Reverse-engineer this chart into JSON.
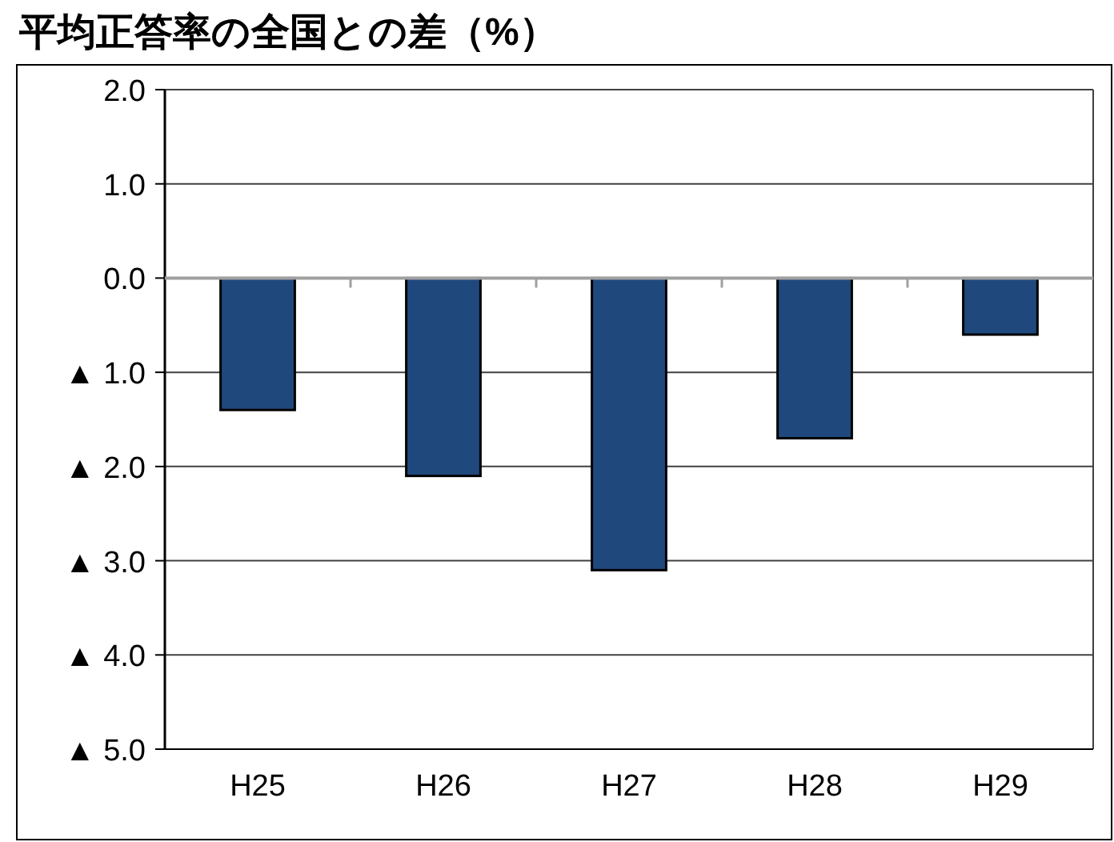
{
  "chart_data": {
    "type": "bar",
    "title": "平均正答率の全国との差（%）",
    "categories": [
      "H25",
      "H26",
      "H27",
      "H28",
      "H29"
    ],
    "values": [
      -1.4,
      -2.1,
      -3.1,
      -1.7,
      -0.6
    ],
    "color": "#1f497d",
    "ylim": [
      -5,
      2
    ],
    "yticks": [
      {
        "value": -5,
        "label": "▲ 5.0"
      },
      {
        "value": -4,
        "label": "▲ 4.0"
      },
      {
        "value": -3,
        "label": "▲ 3.0"
      },
      {
        "value": -2,
        "label": "▲ 2.0"
      },
      {
        "value": -1,
        "label": "▲ 1.0"
      },
      {
        "value": 0,
        "label": "0.0"
      },
      {
        "value": 1,
        "label": "1.0"
      },
      {
        "value": 2,
        "label": "2.0"
      }
    ],
    "grid": "y"
  }
}
